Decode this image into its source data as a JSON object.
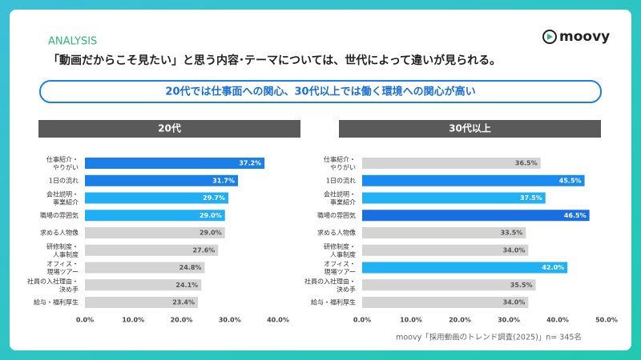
{
  "slide": {
    "tag": "ANALYSIS",
    "logo": "moovy",
    "headline": "「動画だからこそ見たい」と思う内容･テーマについては、世代によって違いが見られる。",
    "callout": "20代では仕事面への関心、30代以上では働く環境への関心が高い",
    "source": "moovy「採用動画のトレンド調査(2025)」n= 345名"
  },
  "chart_data": [
    {
      "type": "bar",
      "orientation": "horizontal",
      "title": "20代",
      "categories": [
        "仕事紹介・\nやりがい",
        "1日の流れ",
        "会社説明・\n事業紹介",
        "職場の雰囲気",
        "求める人物像",
        "研修制度・\n人事制度",
        "オフィス・\n現場ツアー",
        "社員の入社理由・\n決め手",
        "給与・福利厚生"
      ],
      "values": [
        37.2,
        31.7,
        29.7,
        29.0,
        29.0,
        27.6,
        24.8,
        24.1,
        23.4
      ],
      "value_labels": [
        "37.2%",
        "31.7%",
        "29.7%",
        "29.0%",
        "29.0%",
        "27.6%",
        "24.8%",
        "24.1%",
        "23.4%"
      ],
      "colors": [
        "#1a7fe6",
        "#1a7fe6",
        "#22aef2",
        "#22aef2",
        "#d4d4d4",
        "#d4d4d4",
        "#d4d4d4",
        "#d4d4d4",
        "#d4d4d4"
      ],
      "xlim": [
        0,
        40
      ],
      "xticks": [
        {
          "value": 0,
          "label": "0.0%"
        },
        {
          "value": 10,
          "label": "10.0%"
        },
        {
          "value": 20,
          "label": "20.0%"
        },
        {
          "value": 30,
          "label": "30.0%"
        },
        {
          "value": 40,
          "label": "40.0%"
        }
      ]
    },
    {
      "type": "bar",
      "orientation": "horizontal",
      "title": "30代以上",
      "categories": [
        "仕事紹介・\nやりがい",
        "1日の流れ",
        "会社説明・\n事業紹介",
        "職場の雰囲気",
        "求める人物像",
        "研修制度・\n人事制度",
        "オフィス・\n現場ツアー",
        "社員の入社理由・\n決め手",
        "給与・福利厚生"
      ],
      "values": [
        36.5,
        45.5,
        37.5,
        46.5,
        33.5,
        34.0,
        42.0,
        35.5,
        34.0
      ],
      "value_labels": [
        "36.5%",
        "45.5%",
        "37.5%",
        "46.5%",
        "33.5%",
        "34.0%",
        "42.0%",
        "35.5%",
        "34.0%"
      ],
      "colors": [
        "#d4d4d4",
        "#1a8cf0",
        "#22b2f4",
        "#1a6fe0",
        "#d4d4d4",
        "#d4d4d4",
        "#22b2f4",
        "#d4d4d4",
        "#d4d4d4"
      ],
      "xlim": [
        0,
        50
      ],
      "xticks": [
        {
          "value": 0,
          "label": "0.0%"
        },
        {
          "value": 10,
          "label": "10.0%"
        },
        {
          "value": 20,
          "label": "20.0%"
        },
        {
          "value": 30,
          "label": "30.0%"
        },
        {
          "value": 40,
          "label": "40.0%"
        },
        {
          "value": 50,
          "label": "50.0%"
        }
      ]
    }
  ]
}
